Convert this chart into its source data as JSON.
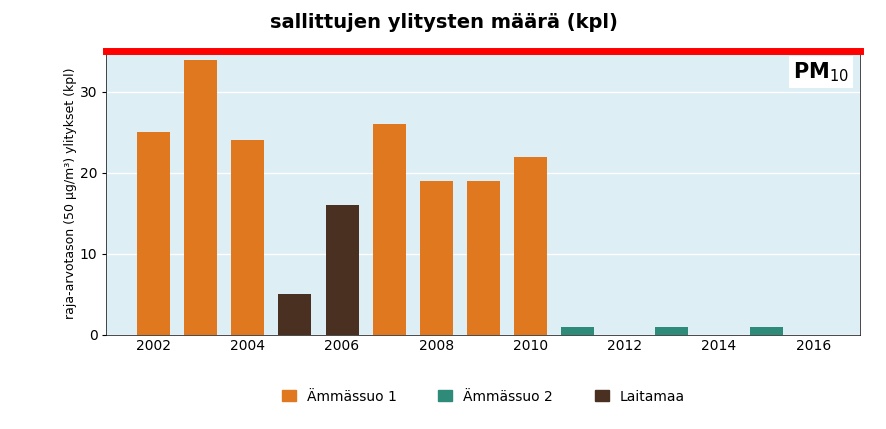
{
  "title": "sallittujen ylitysten määrä (kpl)",
  "ylabel": "raja-arvotason (50 µg/m³) ylitykset (kpl)",
  "xlabel": "",
  "xlim": [
    2001,
    2017
  ],
  "ylim": [
    0,
    35
  ],
  "yticks": [
    0,
    10,
    20,
    30
  ],
  "xticks": [
    2002,
    2004,
    2006,
    2008,
    2010,
    2012,
    2014,
    2016
  ],
  "red_line_y": 35,
  "background_color": "#ddeef5",
  "bar_width": 0.7,
  "series": [
    {
      "label": "Ämmässuo 1",
      "color": "#e07820",
      "data": [
        [
          2002,
          25
        ],
        [
          2003,
          34
        ],
        [
          2004,
          24
        ],
        [
          2007,
          26
        ],
        [
          2008,
          19
        ],
        [
          2009,
          19
        ],
        [
          2010,
          22
        ]
      ]
    },
    {
      "label": "Ämmässuo 2",
      "color": "#2e8b7a",
      "data": [
        [
          2011,
          1
        ],
        [
          2013,
          1
        ],
        [
          2015,
          1
        ]
      ]
    },
    {
      "label": "Laitamaa",
      "color": "#4a3020",
      "data": [
        [
          2005,
          5
        ],
        [
          2006,
          16
        ]
      ]
    }
  ],
  "pm_label": "PM",
  "pm_subscript": "10",
  "title_fontsize": 14,
  "label_fontsize": 9,
  "tick_fontsize": 10,
  "legend_fontsize": 10
}
